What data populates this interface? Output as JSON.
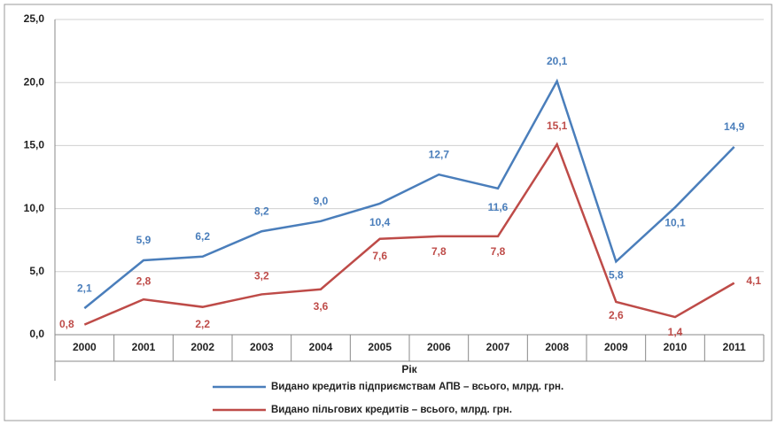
{
  "chart_data": {
    "type": "line",
    "x_label": "Рік",
    "categories": [
      "2000",
      "2001",
      "2002",
      "2003",
      "2004",
      "2005",
      "2006",
      "2007",
      "2008",
      "2009",
      "2010",
      "2011"
    ],
    "series": [
      {
        "name": "Видано кредитів підприємствам АПВ – всього, млрд. грн.",
        "color": "#4a7ebb",
        "values": [
          2.1,
          5.9,
          6.2,
          8.2,
          9.0,
          10.4,
          12.7,
          11.6,
          20.1,
          5.8,
          10.1,
          14.9
        ],
        "value_labels": [
          "2,1",
          "5,9",
          "6,2",
          "8,2",
          "9,0",
          "10,4",
          "12,7",
          "11,6",
          "20,1",
          "5,8",
          "10,1",
          "14,9"
        ]
      },
      {
        "name": "Видано пільгових кредитів – всього, млрд. грн.",
        "color": "#be4b48",
        "values": [
          0.8,
          2.8,
          2.2,
          3.2,
          3.6,
          7.6,
          7.8,
          7.8,
          15.1,
          2.6,
          1.4,
          4.1
        ],
        "value_labels": [
          "0,8",
          "2,8",
          "2,2",
          "3,2",
          "3,6",
          "7,6",
          "7,8",
          "7,8",
          "15,1",
          "2,6",
          "1,4",
          "4,1"
        ]
      }
    ],
    "ylim": [
      0,
      25
    ],
    "yticks": [
      {
        "value": 0,
        "label": "0,0"
      },
      {
        "value": 5,
        "label": "5,0"
      },
      {
        "value": 10,
        "label": "10,0"
      },
      {
        "value": 15,
        "label": "15,0"
      },
      {
        "value": 20,
        "label": "20,0"
      },
      {
        "value": 25,
        "label": "25,0"
      }
    ],
    "grid": true,
    "legend": "bottom"
  }
}
